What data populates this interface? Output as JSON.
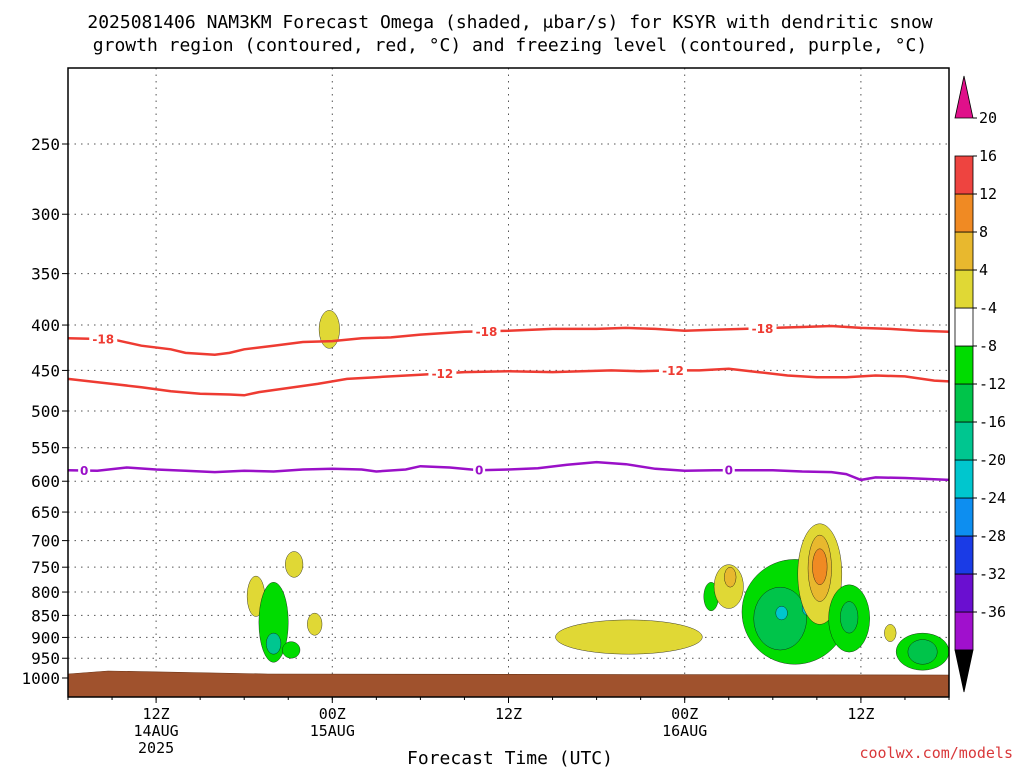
{
  "title_line1": "2025081406 NAM3KM Forecast Omega (shaded, μbar/s) for KSYR with dendritic snow",
  "title_line2": "growth region (contoured, red, °C) and freezing level (contoured, purple, °C)",
  "credit": "coolwx.com/models",
  "colors": {
    "dgz": "#ee3b32",
    "freezing": "#9a10c8",
    "terrain": "#a0522d",
    "credit": "#d9383a"
  },
  "chart_data": {
    "type": "heatmap",
    "title": "2025081406 NAM3KM Forecast Omega (shaded, μbar/s) for KSYR with dendritic snow growth region (contoured, red, °C) and freezing level (contoured, purple, °C)",
    "xlabel": "Forecast Time (UTC)",
    "ylabel": "",
    "x_unit": "forecast hour from 2025081406",
    "xlim": [
      0,
      60
    ],
    "ylim_hPa": [
      1030,
      200
    ],
    "y_ticks": [
      250,
      300,
      350,
      400,
      450,
      500,
      550,
      600,
      650,
      700,
      750,
      800,
      850,
      900,
      950,
      1000
    ],
    "x_ticks": [
      {
        "hour": 6,
        "lines": [
          "12Z",
          "14AUG",
          "2025"
        ]
      },
      {
        "hour": 18,
        "lines": [
          "00Z",
          "15AUG"
        ]
      },
      {
        "hour": 30,
        "lines": [
          "12Z"
        ]
      },
      {
        "hour": 42,
        "lines": [
          "00Z",
          "16AUG"
        ]
      },
      {
        "hour": 54,
        "lines": [
          "12Z"
        ]
      }
    ],
    "contours": [
      {
        "label": "-18",
        "color": "#ee3b32",
        "label_hours": [
          2.4,
          28.5,
          47.3
        ],
        "points": [
          [
            0,
            414
          ],
          [
            3,
            415
          ],
          [
            5,
            422
          ],
          [
            7,
            426
          ],
          [
            8,
            430
          ],
          [
            10,
            432
          ],
          [
            11,
            430
          ],
          [
            12,
            426
          ],
          [
            14,
            422
          ],
          [
            16,
            418
          ],
          [
            18,
            417
          ],
          [
            20,
            414
          ],
          [
            22,
            413
          ],
          [
            24,
            410
          ],
          [
            27,
            407
          ],
          [
            30,
            406
          ],
          [
            33,
            404
          ],
          [
            36,
            404
          ],
          [
            38,
            403
          ],
          [
            40,
            404
          ],
          [
            42,
            406
          ],
          [
            44,
            405
          ],
          [
            46,
            404
          ],
          [
            48,
            403
          ],
          [
            50,
            402
          ],
          [
            52,
            401
          ],
          [
            54,
            403
          ],
          [
            56,
            404
          ],
          [
            58,
            406
          ],
          [
            60,
            407
          ]
        ]
      },
      {
        "label": "-12",
        "color": "#ee3b32",
        "label_hours": [
          25.5,
          41.2
        ],
        "points": [
          [
            0,
            460
          ],
          [
            3,
            466
          ],
          [
            5,
            470
          ],
          [
            7,
            475
          ],
          [
            9,
            478
          ],
          [
            11,
            479
          ],
          [
            12,
            480
          ],
          [
            13,
            476
          ],
          [
            15,
            471
          ],
          [
            17,
            466
          ],
          [
            19,
            460
          ],
          [
            21,
            458
          ],
          [
            24,
            455
          ],
          [
            27,
            452
          ],
          [
            30,
            451
          ],
          [
            33,
            452
          ],
          [
            35,
            451
          ],
          [
            37,
            450
          ],
          [
            39,
            451
          ],
          [
            41,
            450
          ],
          [
            43,
            450
          ],
          [
            45,
            448
          ],
          [
            47,
            452
          ],
          [
            49,
            456
          ],
          [
            51,
            458
          ],
          [
            53,
            458
          ],
          [
            55,
            456
          ],
          [
            57,
            457
          ],
          [
            59,
            462
          ],
          [
            60,
            463
          ]
        ]
      },
      {
        "label": "0",
        "color": "#9a10c8",
        "label_hours": [
          1.1,
          28.0,
          45.0
        ],
        "points": [
          [
            0,
            583
          ],
          [
            2,
            584
          ],
          [
            4,
            579
          ],
          [
            6,
            582
          ],
          [
            8,
            584
          ],
          [
            10,
            586
          ],
          [
            12,
            584
          ],
          [
            14,
            585
          ],
          [
            16,
            582
          ],
          [
            18,
            581
          ],
          [
            20,
            582
          ],
          [
            21,
            585
          ],
          [
            23,
            582
          ],
          [
            24,
            577
          ],
          [
            26,
            579
          ],
          [
            28,
            583
          ],
          [
            30,
            582
          ],
          [
            32,
            580
          ],
          [
            34,
            575
          ],
          [
            36,
            571
          ],
          [
            38,
            574
          ],
          [
            40,
            581
          ],
          [
            42,
            584
          ],
          [
            44,
            583
          ],
          [
            46,
            583
          ],
          [
            48,
            583
          ],
          [
            50,
            585
          ],
          [
            52,
            586
          ],
          [
            53,
            589
          ],
          [
            54,
            598
          ],
          [
            55,
            594
          ],
          [
            57,
            595
          ],
          [
            59,
            597
          ],
          [
            60,
            598
          ]
        ]
      }
    ],
    "omega_scale": {
      "levels": [
        -36,
        -32,
        -28,
        -24,
        -20,
        -16,
        -12,
        -8,
        -4,
        4,
        8,
        12,
        16,
        20
      ],
      "colors": [
        "#9c9c9c",
        "#a010cd",
        "#6a0fd0",
        "#1a3be6",
        "#0d8ef0",
        "#00c6ce",
        "#00c690",
        "#00c44a",
        "#00dc00",
        "#ffffff",
        "#e0d835",
        "#e8b82e",
        "#f08a23",
        "#ee4440",
        "#e0108a"
      ],
      "under_color": "#000000",
      "over_color": "#e0108a"
    },
    "omega_features": [
      {
        "hour": 12.8,
        "p": 810,
        "w": 0.6,
        "h": 85,
        "value": 5
      },
      {
        "hour": 15.4,
        "p": 745,
        "w": 0.6,
        "h": 50,
        "value": 5
      },
      {
        "hour": 17.8,
        "p": 405,
        "w": 0.7,
        "h": 40,
        "value": 5
      },
      {
        "hour": 16.8,
        "p": 870,
        "w": 0.5,
        "h": 50,
        "value": 5
      },
      {
        "hour": 14.0,
        "p": 870,
        "w": 1.0,
        "h": 180,
        "value": -6
      },
      {
        "hour": 14.0,
        "p": 915,
        "w": 0.5,
        "h": 50,
        "value": -13
      },
      {
        "hour": 15.2,
        "p": 930,
        "w": 0.6,
        "h": 40,
        "value": -5
      },
      {
        "hour": 38.2,
        "p": 900,
        "w": 5.0,
        "h": 80,
        "value": 5
      },
      {
        "hour": 43.8,
        "p": 810,
        "w": 0.5,
        "h": 60,
        "value": -6
      },
      {
        "hour": 45.0,
        "p": 790,
        "w": 1.0,
        "h": 90,
        "value": 5
      },
      {
        "hour": 45.1,
        "p": 770,
        "w": 0.4,
        "h": 40,
        "value": 9
      },
      {
        "hour": 49.5,
        "p": 850,
        "w": 3.6,
        "h": 230,
        "value": -6
      },
      {
        "hour": 48.5,
        "p": 860,
        "w": 1.8,
        "h": 140,
        "value": -10
      },
      {
        "hour": 48.6,
        "p": 845,
        "w": 0.4,
        "h": 30,
        "value": -17
      },
      {
        "hour": 50.4,
        "p": 835,
        "w": 0.4,
        "h": 30,
        "value": -17
      },
      {
        "hour": 51.2,
        "p": 770,
        "w": 1.5,
        "h": 200,
        "value": 5
      },
      {
        "hour": 51.2,
        "p": 755,
        "w": 0.8,
        "h": 130,
        "value": 9
      },
      {
        "hour": 51.2,
        "p": 750,
        "w": 0.5,
        "h": 70,
        "value": 14
      },
      {
        "hour": 53.2,
        "p": 860,
        "w": 1.4,
        "h": 150,
        "value": -6
      },
      {
        "hour": 53.2,
        "p": 855,
        "w": 0.6,
        "h": 70,
        "value": -12
      },
      {
        "hour": 56.0,
        "p": 890,
        "w": 0.4,
        "h": 40,
        "value": 5
      },
      {
        "hour": 58.2,
        "p": 935,
        "w": 1.8,
        "h": 90,
        "value": -6
      },
      {
        "hour": 58.2,
        "p": 935,
        "w": 1.0,
        "h": 60,
        "value": -11
      }
    ]
  }
}
